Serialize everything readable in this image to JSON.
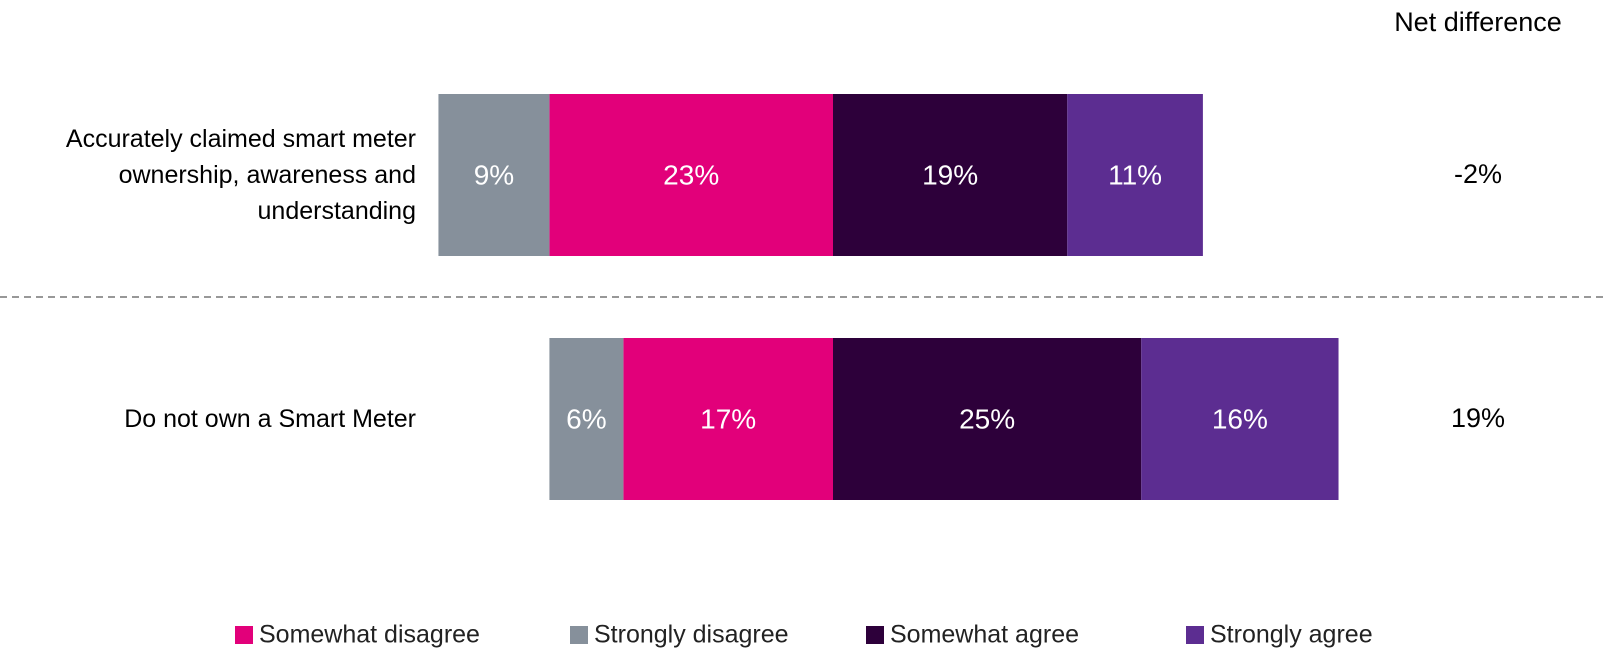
{
  "chart_data": {
    "type": "diverging_stacked_bar",
    "categories": [
      "Accurately claimed smart meter ownership, awareness and understanding",
      "Do not own a Smart Meter"
    ],
    "series": [
      {
        "name": "Somewhat disagree",
        "color": "#e2007a",
        "values": [
          23,
          17
        ],
        "value_labels": [
          "23%",
          "17%"
        ]
      },
      {
        "name": "Strongly disagree",
        "color": "#86909b",
        "values": [
          9,
          6
        ],
        "value_labels": [
          "9%",
          "6%"
        ]
      },
      {
        "name": "Somewhat agree",
        "color": "#2d003a",
        "values": [
          19,
          25
        ],
        "value_labels": [
          "19%",
          "25%"
        ]
      },
      {
        "name": "Strongly agree",
        "color": "#5c2d91",
        "values": [
          11,
          16
        ],
        "value_labels": [
          "11%",
          "16%"
        ]
      }
    ],
    "net_difference": {
      "title": "Net difference",
      "values": [
        -2,
        19
      ],
      "value_labels": [
        "-2%",
        "19%"
      ]
    }
  }
}
